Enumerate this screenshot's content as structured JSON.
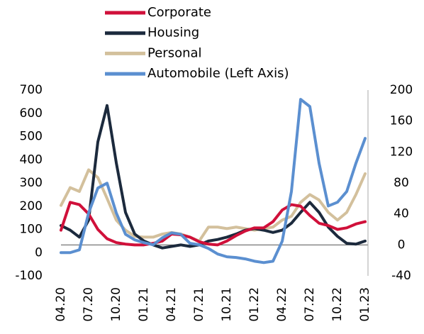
{
  "chart_data": {
    "type": "line",
    "categories": [
      "04.20",
      null,
      null,
      "07.20",
      null,
      null,
      "10.20",
      null,
      null,
      "01.21",
      null,
      null,
      "04.21",
      null,
      null,
      "07.21",
      null,
      null,
      "10.21",
      null,
      null,
      "01.22",
      null,
      null,
      "04.22",
      null,
      null,
      "07.22",
      null,
      null,
      "10.22",
      null,
      null,
      "01.23"
    ],
    "series": [
      {
        "name": "Corporate",
        "color": "#d0103a",
        "axis": "y2",
        "values": [
          19,
          55,
          52,
          40,
          20,
          8,
          3,
          1,
          0,
          0,
          2,
          5,
          14,
          13,
          10,
          4,
          1,
          0,
          5,
          12,
          18,
          22,
          22,
          30,
          45,
          52,
          50,
          38,
          28,
          25,
          20,
          22,
          27,
          30
        ]
      },
      {
        "name": "Housing",
        "color": "#1c2a3d",
        "axis": "y2",
        "values": [
          25,
          19,
          10,
          32,
          133,
          180,
          106,
          42,
          14,
          5,
          0,
          -4,
          -2,
          0,
          -2,
          0,
          5,
          7,
          10,
          14,
          19,
          21,
          19,
          16,
          19,
          28,
          42,
          55,
          42,
          23,
          11,
          2,
          1,
          5
        ]
      },
      {
        "name": "Personal",
        "color": "#d3c09c",
        "axis": "y2",
        "values": [
          51,
          74,
          69,
          97,
          87,
          60,
          32,
          19,
          11,
          10,
          10,
          14,
          16,
          14,
          10,
          5,
          23,
          23,
          21,
          23,
          21,
          19,
          21,
          23,
          32,
          37,
          55,
          65,
          58,
          42,
          32,
          42,
          65,
          92
        ]
      },
      {
        "name": "Automobile (Left Axis)",
        "color": "#5b8fd0",
        "axis": "y",
        "values": [
          0,
          0,
          12,
          171,
          278,
          299,
          171,
          79,
          55,
          43,
          34,
          64,
          85,
          79,
          40,
          34,
          18,
          -6,
          -18,
          -21,
          -27,
          -37,
          -43,
          -37,
          49,
          263,
          660,
          629,
          385,
          201,
          217,
          263,
          385,
          492
        ]
      }
    ],
    "ylim": [
      -100,
      700
    ],
    "yticks": [
      -100,
      0,
      100,
      200,
      300,
      400,
      500,
      600,
      700
    ],
    "y2lim": [
      -40,
      200
    ],
    "y2ticks": [
      -40,
      0,
      40,
      80,
      120,
      160,
      200
    ],
    "legend": "top"
  }
}
